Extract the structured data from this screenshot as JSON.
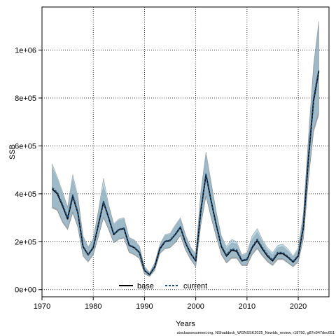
{
  "chart_data": {
    "type": "line",
    "title": "",
    "xlabel": "Years",
    "ylabel": "SSB",
    "xlim": [
      1970,
      2026
    ],
    "ylim": [
      -30000,
      1180000
    ],
    "x_ticks": [
      1970,
      1980,
      1990,
      2000,
      2010,
      2020
    ],
    "y_ticks": [
      0,
      200000,
      400000,
      600000,
      800000,
      1000000
    ],
    "y_tick_labels": [
      "0e+00",
      "2e+05",
      "4e+05",
      "6e+05",
      "8e+05",
      "1e+06"
    ],
    "grid": true,
    "legend_position": "bottom-center",
    "caption": "stockassessment.org, NShaddock_WGNSSK2025_Newlds_review, r18750, g87e947dec651",
    "colors": {
      "base_line": "#000000",
      "base_band": "#9a9a9a",
      "current_line": "#1f4e79",
      "current_band": "#8fbdd6"
    },
    "x": [
      1972,
      1973,
      1974,
      1975,
      1976,
      1977,
      1978,
      1979,
      1980,
      1981,
      1982,
      1983,
      1984,
      1985,
      1986,
      1987,
      1988,
      1989,
      1990,
      1991,
      1992,
      1993,
      1994,
      1995,
      1996,
      1997,
      1998,
      1999,
      2000,
      2001,
      2002,
      2003,
      2004,
      2005,
      2006,
      2007,
      2008,
      2009,
      2010,
      2011,
      2012,
      2013,
      2014,
      2015,
      2016,
      2017,
      2018,
      2019,
      2020,
      2021,
      2022,
      2023,
      2024
    ],
    "series": [
      {
        "name": "base",
        "values": [
          420000,
          400000,
          350000,
          295000,
          390000,
          320000,
          180000,
          145000,
          175000,
          270000,
          365000,
          300000,
          230000,
          250000,
          255000,
          185000,
          175000,
          155000,
          80000,
          62000,
          95000,
          170000,
          200000,
          205000,
          230000,
          260000,
          195000,
          150000,
          120000,
          330000,
          480000,
          370000,
          270000,
          180000,
          140000,
          165000,
          160000,
          120000,
          125000,
          175000,
          205000,
          170000,
          140000,
          120000,
          150000,
          150000,
          135000,
          115000,
          140000,
          260000,
          550000,
          790000,
          910000
        ],
        "lower": [
          340000,
          330000,
          280000,
          250000,
          320000,
          260000,
          140000,
          115000,
          145000,
          220000,
          300000,
          250000,
          195000,
          210000,
          215000,
          155000,
          145000,
          130000,
          65000,
          55000,
          80000,
          150000,
          170000,
          175000,
          195000,
          225000,
          165000,
          125000,
          95000,
          270000,
          390000,
          300000,
          220000,
          145000,
          110000,
          130000,
          130000,
          100000,
          100000,
          145000,
          170000,
          140000,
          115000,
          100000,
          125000,
          125000,
          110000,
          95000,
          115000,
          210000,
          460000,
          660000,
          730000
        ],
        "upper": [
          510000,
          460000,
          400000,
          340000,
          460000,
          380000,
          220000,
          175000,
          210000,
          325000,
          430000,
          350000,
          270000,
          290000,
          295000,
          215000,
          205000,
          180000,
          95000,
          70000,
          110000,
          185000,
          225000,
          230000,
          265000,
          295000,
          225000,
          175000,
          145000,
          400000,
          560000,
          440000,
          320000,
          220000,
          170000,
          195000,
          190000,
          140000,
          150000,
          210000,
          240000,
          200000,
          165000,
          145000,
          175000,
          180000,
          160000,
          135000,
          165000,
          310000,
          630000,
          930000,
          1100000
        ]
      },
      {
        "name": "current",
        "values": [
          425000,
          405000,
          355000,
          300000,
          395000,
          322000,
          182000,
          147000,
          177000,
          272000,
          368000,
          302000,
          232000,
          252000,
          257000,
          187000,
          177000,
          157000,
          81000,
          63000,
          96000,
          172000,
          202000,
          207000,
          232000,
          262000,
          197000,
          152000,
          122000,
          332000,
          482000,
          372000,
          272000,
          182000,
          145000,
          170000,
          165000,
          122000,
          128000,
          178000,
          210000,
          175000,
          145000,
          123000,
          155000,
          155000,
          138000,
          117000,
          143000,
          265000,
          555000,
          800000,
          915000
        ],
        "lower": [
          345000,
          335000,
          285000,
          255000,
          325000,
          262000,
          142000,
          117000,
          147000,
          222000,
          302000,
          252000,
          197000,
          212000,
          217000,
          157000,
          147000,
          132000,
          66000,
          56000,
          81000,
          152000,
          172000,
          177000,
          197000,
          227000,
          167000,
          127000,
          97000,
          272000,
          392000,
          302000,
          222000,
          147000,
          115000,
          135000,
          135000,
          102000,
          103000,
          148000,
          175000,
          145000,
          120000,
          103000,
          130000,
          130000,
          113000,
          97000,
          118000,
          215000,
          465000,
          670000,
          740000
        ],
        "upper": [
          525000,
          470000,
          410000,
          345000,
          480000,
          390000,
          225000,
          178000,
          213000,
          330000,
          465000,
          355000,
          275000,
          295000,
          300000,
          218000,
          208000,
          182000,
          97000,
          72000,
          112000,
          188000,
          230000,
          235000,
          270000,
          300000,
          230000,
          178000,
          150000,
          410000,
          575000,
          450000,
          325000,
          225000,
          180000,
          210000,
          200000,
          145000,
          155000,
          225000,
          255000,
          210000,
          175000,
          155000,
          185000,
          190000,
          170000,
          140000,
          175000,
          320000,
          640000,
          940000,
          1120000
        ]
      }
    ]
  }
}
